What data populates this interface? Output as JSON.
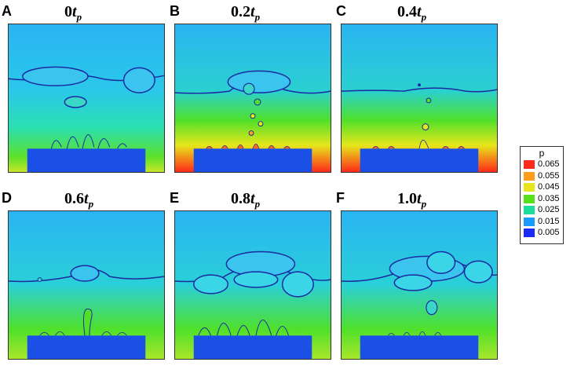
{
  "panels": [
    {
      "letter": "A",
      "time": "0",
      "unit": "t",
      "sub": "p"
    },
    {
      "letter": "B",
      "time": "0.2",
      "unit": "t",
      "sub": "p"
    },
    {
      "letter": "C",
      "time": "0.4",
      "unit": "t",
      "sub": "p"
    },
    {
      "letter": "D",
      "time": "0.6",
      "unit": "t",
      "sub": "p"
    },
    {
      "letter": "E",
      "time": "0.8",
      "unit": "t",
      "sub": "p"
    },
    {
      "letter": "F",
      "time": "1.0",
      "unit": "t",
      "sub": "p"
    }
  ],
  "colorbar": {
    "title": "p",
    "levels": [
      "0.065",
      "0.055",
      "0.045",
      "0.035",
      "0.025",
      "0.015",
      "0.005"
    ],
    "colors": [
      "#ff2a1a",
      "#ff9c1a",
      "#e6e61a",
      "#55e01a",
      "#1adc9c",
      "#1a9cff",
      "#1a2aff"
    ]
  },
  "colors": {
    "fluid_top": "#2ab8f0",
    "fluid_mid": "#2ad6c8",
    "fluid_low": "#50e02a",
    "heater": "#1a50e6",
    "interface": "#1a2aa0"
  }
}
